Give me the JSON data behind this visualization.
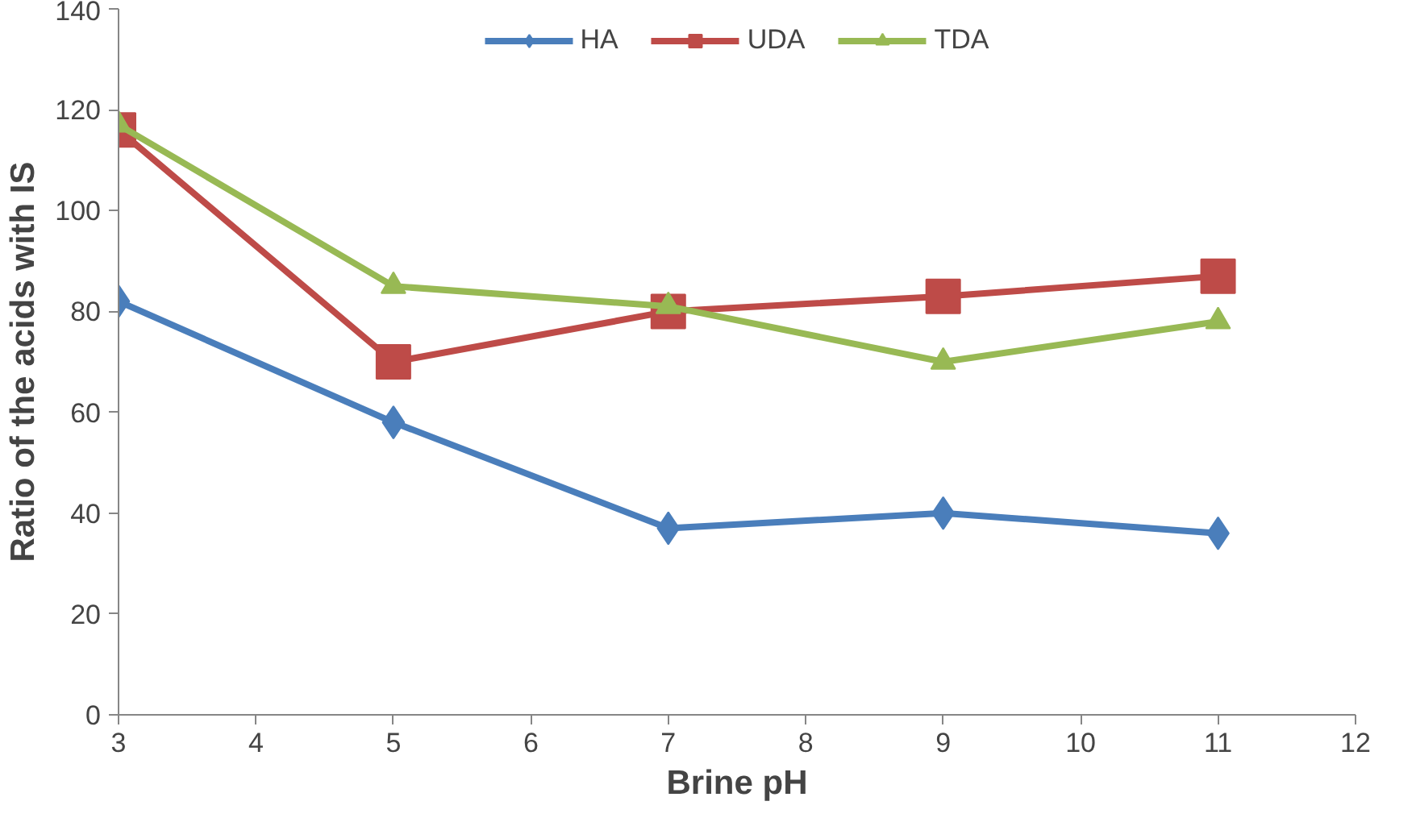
{
  "chart_data": {
    "type": "line",
    "xlabel": "Brine pH",
    "ylabel": "Ratio of the acids with IS",
    "x": [
      3,
      5,
      7,
      9,
      11
    ],
    "series": [
      {
        "name": "HA",
        "color": "#4a7ebb",
        "marker": "diamond",
        "values": [
          82,
          58,
          37,
          40,
          36
        ]
      },
      {
        "name": "UDA",
        "color": "#be4b48",
        "marker": "square",
        "values": [
          116,
          70,
          80,
          83,
          87
        ]
      },
      {
        "name": "TDA",
        "color": "#98b954",
        "marker": "triangle",
        "values": [
          117,
          85,
          81,
          70,
          78
        ]
      }
    ],
    "xlim": [
      3,
      12
    ],
    "xticks": [
      3,
      4,
      5,
      6,
      7,
      8,
      9,
      10,
      11,
      12
    ],
    "ylim": [
      0,
      140
    ],
    "yticks": [
      0,
      20,
      40,
      60,
      80,
      100,
      120,
      140
    ],
    "grid": false,
    "legend": "top",
    "line_style": "solid"
  }
}
